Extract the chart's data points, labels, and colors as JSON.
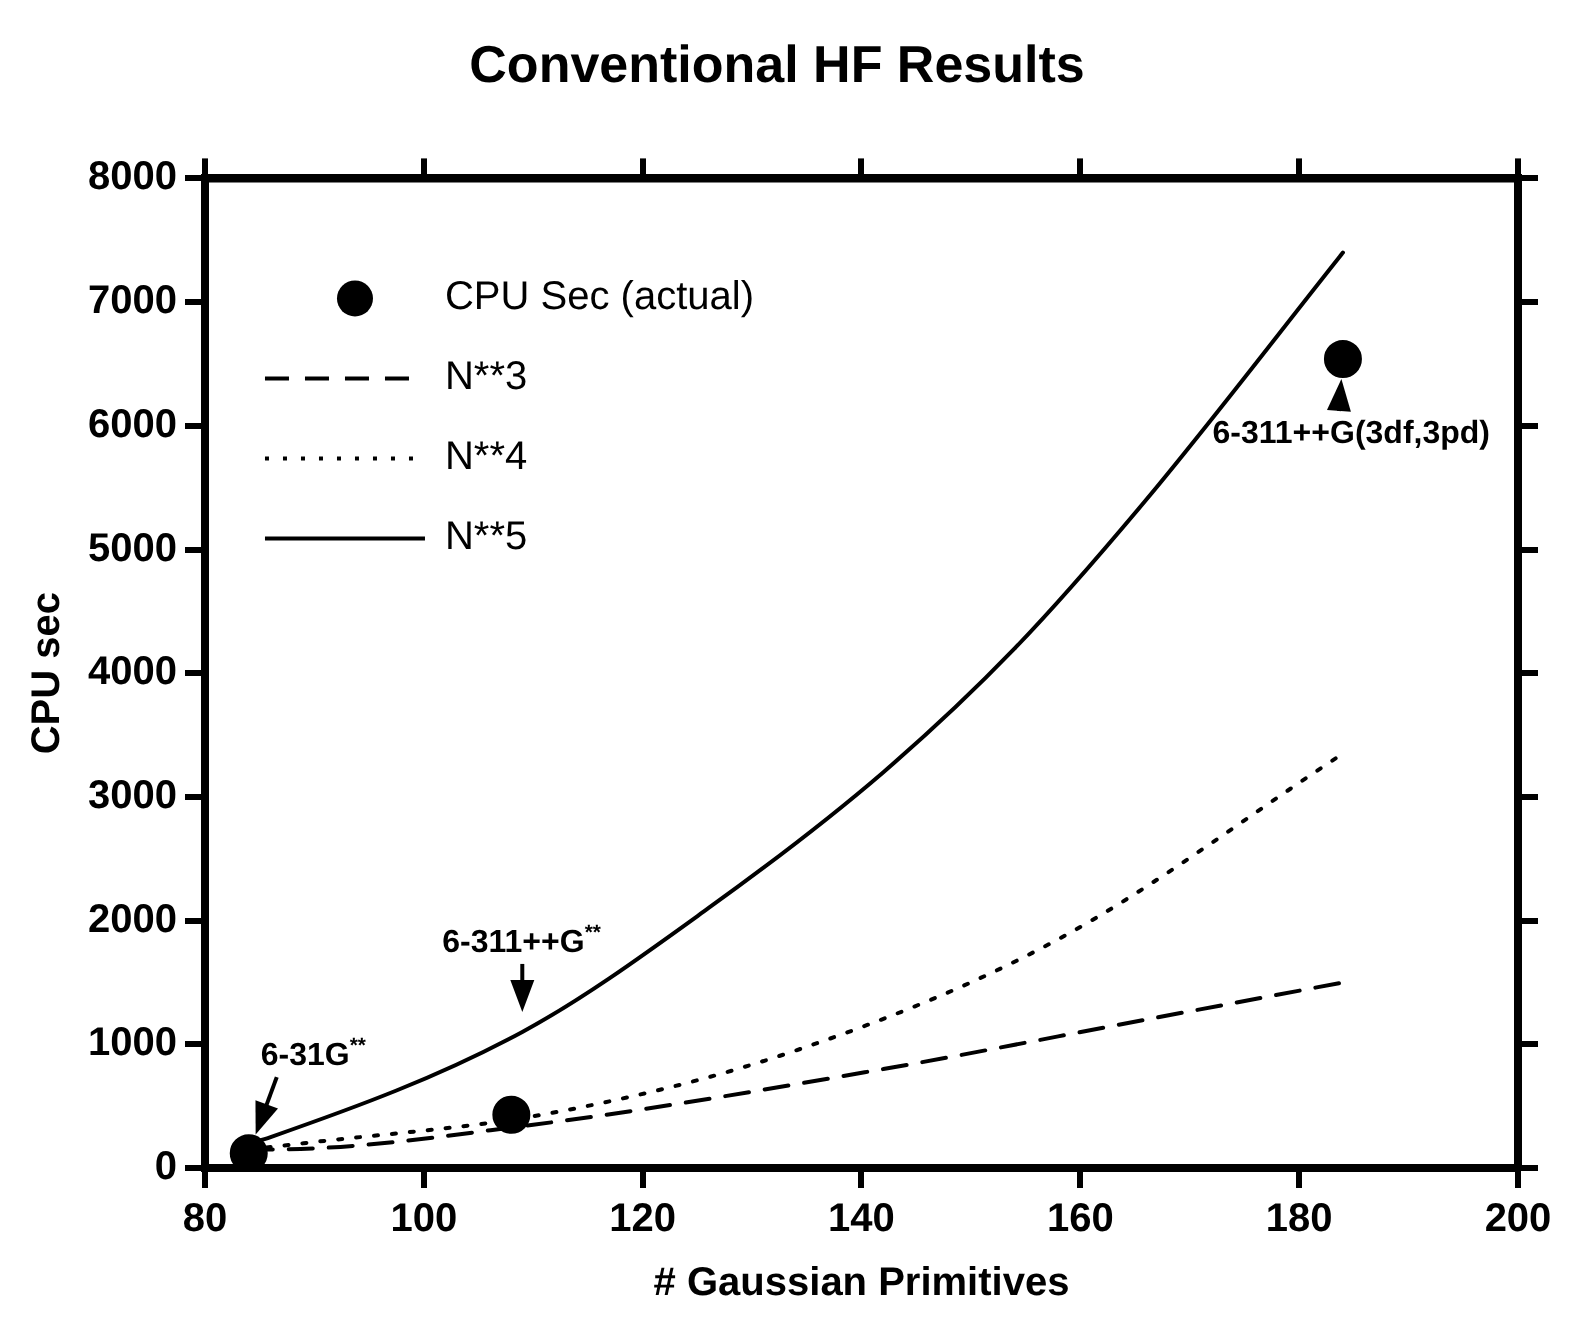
{
  "chart_data": {
    "type": "line",
    "title": "Conventional HF Results",
    "xlabel": "# Gaussian Primitives",
    "ylabel": "CPU sec",
    "xlim": [
      80,
      200
    ],
    "xticks": [
      80,
      100,
      120,
      140,
      160,
      180,
      200
    ],
    "ylim": [
      0,
      8000
    ],
    "yticks": [
      0,
      1000,
      2000,
      3000,
      4000,
      5000,
      6000,
      7000,
      8000
    ],
    "grid": false,
    "legend": "top left",
    "series": [
      {
        "name": "CPU Sec (actual)",
        "type": "scatter",
        "marker": "circle",
        "color": "#000000",
        "x": [
          84,
          108,
          184
        ],
        "values": [
          120,
          430,
          6540
        ]
      },
      {
        "name": "N**3",
        "line_style": "dashed",
        "marker": "none",
        "color": "#000000",
        "x": [
          84,
          86,
          110,
          142,
          166,
          184
        ],
        "values": [
          150,
          150,
          350,
          800,
          1200,
          1500
        ]
      },
      {
        "name": "N**4",
        "line_style": "dotted",
        "marker": "none",
        "color": "#000000",
        "x": [
          84,
          89,
          112,
          134,
          158,
          184
        ],
        "values": [
          150,
          200,
          450,
          950,
          1850,
          3350
        ]
      },
      {
        "name": "N**5",
        "line_style": "solid",
        "marker": "none",
        "color": "#000000",
        "x": [
          84,
          86,
          109,
          126,
          142,
          154,
          166,
          184
        ],
        "values": [
          200,
          250,
          1100,
          2100,
          3200,
          4200,
          5400,
          7400
        ]
      }
    ],
    "annotations": [
      {
        "text": "6-31G$^{**}$",
        "x": 84,
        "y": 120
      },
      {
        "text": "6-311++G$^{**}$",
        "x": 109,
        "y": 1100
      },
      {
        "text": "6-311++G(3df,3pd)",
        "x": 184,
        "y": 6540
      }
    ]
  }
}
